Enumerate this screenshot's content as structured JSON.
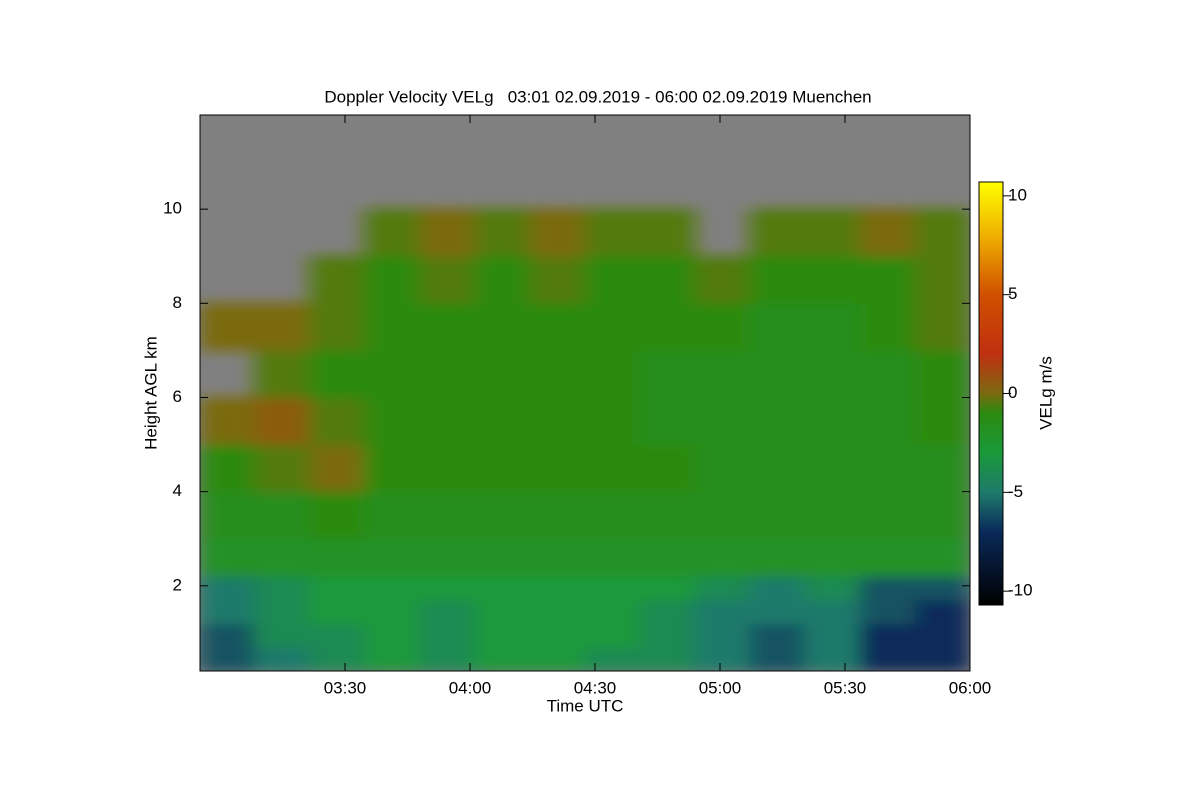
{
  "chart_data": {
    "type": "heatmap",
    "title": "Doppler Velocity VELg   03:01 02.09.2019 - 06:00 02.09.2019 Muenchen",
    "x_label": "Time UTC",
    "y_label": "Height AGL km",
    "colorbar_label": "VELg m/s",
    "xlim": [
      2.92,
      6.0
    ],
    "xticks": [
      {
        "value": 3.5,
        "label": "03:30"
      },
      {
        "value": 4.0,
        "label": "04:00"
      },
      {
        "value": 4.5,
        "label": "04:30"
      },
      {
        "value": 5.0,
        "label": "05:00"
      },
      {
        "value": 5.5,
        "label": "05:30"
      },
      {
        "value": 6.0,
        "label": "06:00"
      }
    ],
    "ylim": [
      0.19,
      12
    ],
    "yticks": [
      2,
      4,
      6,
      8,
      10
    ],
    "clim": [
      -10.7,
      10.7
    ],
    "cticks": [
      -10,
      -5,
      0,
      5,
      10
    ],
    "nodata_color": "#808080",
    "colormap": [
      {
        "value": -10.7,
        "color": "#000000"
      },
      {
        "value": -7,
        "color": "#0a2a5a"
      },
      {
        "value": -5,
        "color": "#1e7a6a"
      },
      {
        "value": -3,
        "color": "#1a9a3a"
      },
      {
        "value": -1,
        "color": "#2a8a10"
      },
      {
        "value": 0,
        "color": "#7a6a10"
      },
      {
        "value": 2,
        "color": "#c03010"
      },
      {
        "value": 5,
        "color": "#d05000"
      },
      {
        "value": 8,
        "color": "#f0b000"
      },
      {
        "value": 10.7,
        "color": "#ffff00"
      }
    ],
    "x_edges": [
      2.92,
      3.14,
      3.36,
      3.58,
      3.8,
      4.02,
      4.24,
      4.46,
      4.68,
      4.9,
      5.12,
      5.34,
      5.56,
      5.78,
      6.0
    ],
    "y_edges": [
      0.19,
      0.7,
      1.2,
      1.7,
      2.2,
      3,
      4,
      5,
      6,
      7,
      8,
      9,
      10,
      11,
      12
    ],
    "z": [
      [
        -6,
        -5,
        -4,
        -3,
        -4,
        -3,
        -3,
        -4,
        -4,
        -5,
        -6,
        -5,
        -7,
        -7
      ],
      [
        -6,
        -4,
        -4,
        -3,
        -4,
        -3,
        -3,
        -3,
        -4,
        -5,
        -6,
        -5,
        -7,
        -7
      ],
      [
        -5,
        -4,
        -3,
        -3,
        -4,
        -3,
        -3,
        -3,
        -4,
        -5,
        -5,
        -5,
        -6,
        -7
      ],
      [
        -5,
        -4,
        -3,
        -3,
        -3,
        -3,
        -3,
        -3,
        -3,
        -4,
        -5,
        -4,
        -6,
        -6
      ],
      [
        -2,
        -2,
        -2,
        -2,
        -2,
        -2,
        -2,
        -2,
        -2,
        -2,
        -2,
        -2,
        -2,
        -2
      ],
      [
        -1.5,
        -1.5,
        -1,
        -1.5,
        -1.5,
        -1.5,
        -1.5,
        -1.5,
        -1.5,
        -1.5,
        -1.5,
        -1.5,
        -1.5,
        -1.5
      ],
      [
        -1,
        -0.5,
        0,
        -1,
        -1,
        -1,
        -1,
        -1,
        -1,
        -1.5,
        -1.5,
        -1.5,
        -1.5,
        -1.5
      ],
      [
        0,
        0.5,
        -0.5,
        -1,
        -1,
        -1,
        -1,
        -1,
        -1.5,
        -1.5,
        -1.5,
        -1.5,
        -1.5,
        -1
      ],
      [
        null,
        -0.5,
        -1,
        -1,
        -1,
        -1,
        -1,
        -1,
        -1.5,
        -1.5,
        -1.5,
        -1.5,
        -1.5,
        -1
      ],
      [
        0,
        0,
        -0.5,
        -1,
        -1,
        -1,
        -1,
        -1,
        -1,
        -1,
        -1.5,
        -1.5,
        -1,
        -0.5
      ],
      [
        null,
        null,
        -0.5,
        -1,
        -0.5,
        -1,
        -0.5,
        -1,
        -1,
        -0.5,
        -1,
        -1,
        -1,
        -0.5
      ],
      [
        null,
        null,
        null,
        -0.5,
        0,
        -0.5,
        0,
        -0.5,
        -0.5,
        null,
        -0.5,
        -0.5,
        0,
        -0.5
      ],
      [
        null,
        null,
        null,
        null,
        null,
        null,
        null,
        null,
        null,
        null,
        null,
        null,
        null,
        null
      ],
      [
        null,
        null,
        null,
        null,
        null,
        null,
        null,
        null,
        null,
        null,
        null,
        null,
        null,
        null
      ]
    ]
  }
}
